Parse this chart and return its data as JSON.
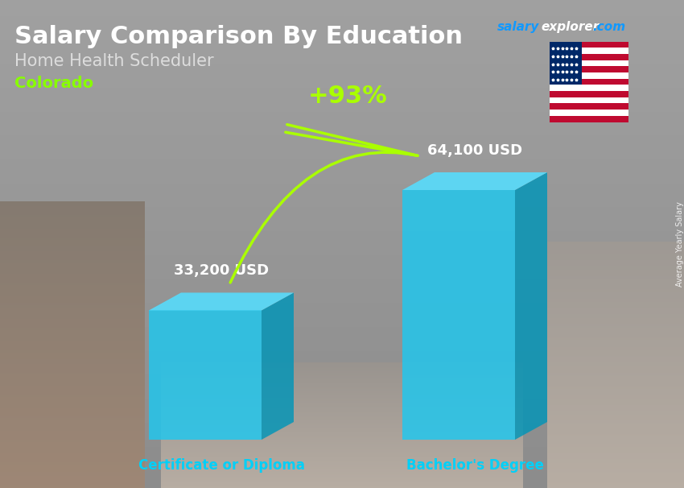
{
  "title": "Salary Comparison By Education",
  "subtitle": "Home Health Scheduler",
  "location": "Colorado",
  "side_label": "Average Yearly Salary",
  "categories": [
    "Certificate or Diploma",
    "Bachelor's Degree"
  ],
  "values": [
    33200,
    64100
  ],
  "value_labels": [
    "33,200 USD",
    "64,100 USD"
  ],
  "pct_change": "+93%",
  "bar_face_color": "#1ec8f0",
  "bar_side_color": "#0095b8",
  "bar_top_color": "#55deff",
  "category_label_color": "#00d0f8",
  "title_color": "#ffffff",
  "subtitle_color": "#dddddd",
  "location_color": "#88ff00",
  "value_label_color": "#ffffff",
  "pct_color": "#aaff00",
  "arrow_color": "#aaff00",
  "watermark_salary_color": "#1199ff",
  "watermark_explorer_color": "#ffffff",
  "watermark_com_color": "#1199ff",
  "bg_color_top": "#7a7a7a",
  "bg_color_bottom": "#5a5a5a",
  "figsize": [
    8.5,
    6.06
  ],
  "dpi": 100
}
